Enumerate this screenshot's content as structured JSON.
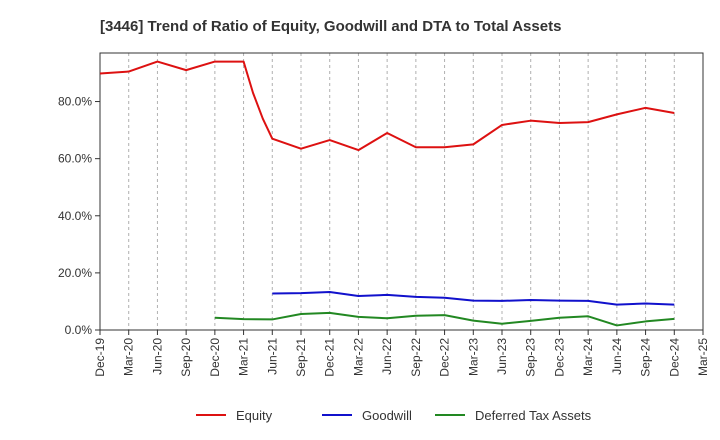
{
  "chart_data": {
    "type": "line",
    "title": "[3446]  Trend of Ratio of Equity, Goodwill and DTA to Total Assets",
    "xlabel": "",
    "ylabel": "",
    "ylim": [
      0,
      97
    ],
    "yticks": [
      0,
      20,
      40,
      60,
      80
    ],
    "ytick_labels": [
      "0.0%",
      "20.0%",
      "40.0%",
      "60.0%",
      "80.0%"
    ],
    "categories": [
      "Dec-19",
      "Mar-20",
      "Jun-20",
      "Sep-20",
      "Dec-20",
      "Mar-21",
      "Jun-21",
      "Sep-21",
      "Dec-21",
      "Mar-22",
      "Jun-22",
      "Sep-22",
      "Dec-22",
      "Mar-23",
      "Jun-23",
      "Sep-23",
      "Dec-23",
      "Mar-24",
      "Jun-24",
      "Sep-24",
      "Dec-24",
      "Mar-25"
    ],
    "grid": {
      "vertical": true,
      "horizontal": false,
      "style": "dashed"
    },
    "legend_position": "bottom",
    "series": [
      {
        "name": "Equity",
        "color": "#dd1111",
        "x": [
          0,
          1,
          2,
          3,
          4,
          5,
          5.33,
          5.67,
          6,
          7,
          8,
          9,
          10,
          11,
          12,
          13,
          14,
          15,
          16,
          17,
          18,
          19,
          20
        ],
        "values": [
          89.8,
          90.5,
          94,
          91,
          94,
          94,
          83,
          74,
          67,
          63.5,
          66.5,
          63,
          69,
          64,
          64,
          65,
          71.8,
          73.3,
          72.5,
          72.8,
          75.5,
          77.8,
          76
        ]
      },
      {
        "name": "Goodwill",
        "color": "#1111cc",
        "x": [
          6,
          7,
          8,
          9,
          10,
          11,
          12,
          13,
          14,
          15,
          16,
          17,
          18,
          19,
          20
        ],
        "values": [
          12.8,
          12.9,
          13.3,
          11.9,
          12.3,
          11.6,
          11.3,
          10.3,
          10.2,
          10.5,
          10.3,
          10.2,
          8.9,
          9.3,
          8.9
        ]
      },
      {
        "name": "Deferred Tax Assets",
        "color": "#228822",
        "x": [
          4,
          5,
          6,
          7,
          8,
          9,
          10,
          11,
          12,
          13,
          14,
          15,
          16,
          17,
          18,
          19,
          20
        ],
        "values": [
          4.3,
          3.8,
          3.7,
          5.6,
          6,
          4.6,
          4.1,
          5,
          5.2,
          3.3,
          2.2,
          3.2,
          4.3,
          4.8,
          1.6,
          3,
          3.9
        ]
      }
    ]
  }
}
